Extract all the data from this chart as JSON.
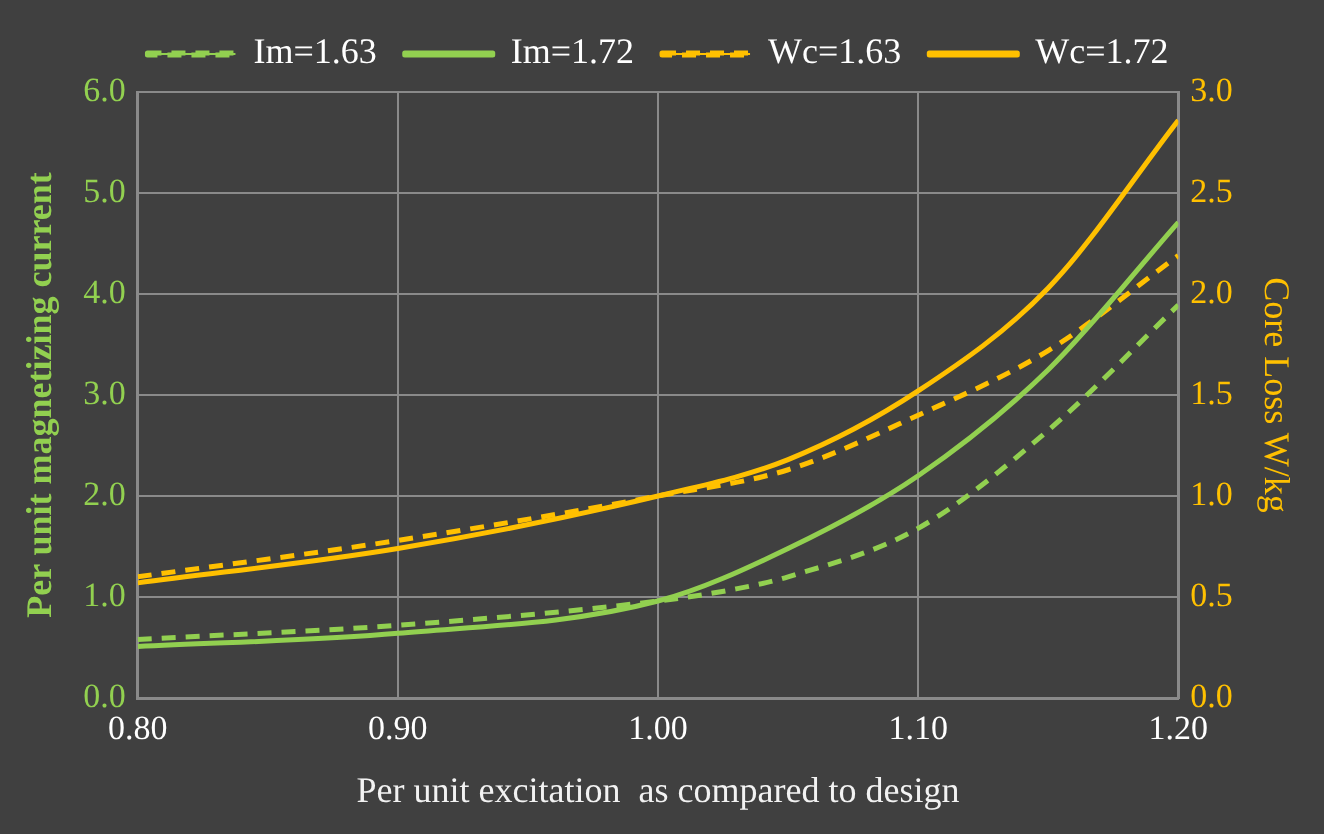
{
  "chart_data": {
    "type": "line",
    "xlabel": "Per unit excitation  as compared to design",
    "ylabel": "Per unit magnetizing current",
    "y2label": "Core Loss W/kg",
    "xlim": [
      0.8,
      1.2
    ],
    "xticks": [
      {
        "value": 0.8,
        "label": "0.80"
      },
      {
        "value": 0.9,
        "label": "0.90"
      },
      {
        "value": 1.0,
        "label": "1.00"
      },
      {
        "value": 1.1,
        "label": "1.10"
      },
      {
        "value": 1.2,
        "label": "1.20"
      }
    ],
    "ylim": [
      0,
      6
    ],
    "yticks": [
      {
        "value": 0,
        "label": "0.0"
      },
      {
        "value": 1,
        "label": "1.0"
      },
      {
        "value": 2,
        "label": "2.0"
      },
      {
        "value": 3,
        "label": "3.0"
      },
      {
        "value": 4,
        "label": "4.0"
      },
      {
        "value": 5,
        "label": "5.0"
      },
      {
        "value": 6,
        "label": "6.0"
      }
    ],
    "y2lim": [
      0,
      3
    ],
    "y2ticks": [
      {
        "value": 0,
        "label": "0.0"
      },
      {
        "value": 0.5,
        "label": "0.5"
      },
      {
        "value": 1,
        "label": "1.0"
      },
      {
        "value": 1.5,
        "label": "1.5"
      },
      {
        "value": 2,
        "label": "2.0"
      },
      {
        "value": 2.5,
        "label": "2.5"
      },
      {
        "value": 3,
        "label": "3.0"
      }
    ],
    "grid": true,
    "legend": "top",
    "marker": "none",
    "series": [
      {
        "name": "Im=1.63",
        "color": "#92d050",
        "line_style": "dashed",
        "x": [
          0.8,
          0.9,
          1.0,
          1.03,
          1.05,
          1.1,
          1.15,
          1.2
        ],
        "values": [
          0.58,
          0.72,
          0.96,
          1.08,
          1.2,
          1.68,
          2.65,
          3.89
        ]
      },
      {
        "name": "Im=1.72",
        "color": "#92d050",
        "line_style": "solid",
        "x": [
          0.8,
          0.9,
          1.0,
          1.05,
          1.1,
          1.15,
          1.2
        ],
        "values": [
          0.51,
          0.64,
          0.96,
          1.48,
          2.2,
          3.25,
          4.71
        ]
      },
      {
        "name": "Wc=1.63",
        "color": "#ffc000",
        "line_style": "dashed",
        "axis": "y2",
        "x": [
          0.8,
          0.9,
          1.0,
          1.05,
          1.1,
          1.15,
          1.2
        ],
        "values": [
          0.6,
          0.78,
          1.0,
          1.13,
          1.4,
          1.72,
          2.19
        ]
      },
      {
        "name": "Wc=1.72",
        "color": "#ffc000",
        "line_style": "solid",
        "axis": "y2",
        "x": [
          0.8,
          0.9,
          1.0,
          1.05,
          1.1,
          1.15,
          1.2
        ],
        "values": [
          0.57,
          0.74,
          1.0,
          1.18,
          1.52,
          2.03,
          2.86
        ]
      }
    ]
  }
}
